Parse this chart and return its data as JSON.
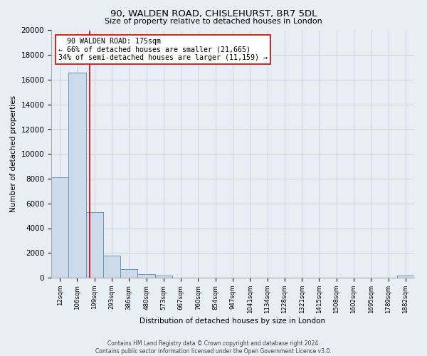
{
  "title": "90, WALDEN ROAD, CHISLEHURST, BR7 5DL",
  "subtitle": "Size of property relative to detached houses in London",
  "xlabel": "Distribution of detached houses by size in London",
  "ylabel": "Number of detached properties",
  "bar_labels": [
    "12sqm",
    "106sqm",
    "199sqm",
    "293sqm",
    "386sqm",
    "480sqm",
    "573sqm",
    "667sqm",
    "760sqm",
    "854sqm",
    "947sqm",
    "1041sqm",
    "1134sqm",
    "1228sqm",
    "1321sqm",
    "1415sqm",
    "1508sqm",
    "1602sqm",
    "1695sqm",
    "1789sqm",
    "1882sqm"
  ],
  "bar_heights": [
    8100,
    16600,
    5300,
    1800,
    700,
    300,
    150,
    0,
    0,
    0,
    0,
    0,
    0,
    0,
    0,
    0,
    0,
    0,
    0,
    0,
    150
  ],
  "bar_color": "#ccdaea",
  "bar_edge_color": "#6699bb",
  "vline_color": "#cc0000",
  "annotation_title": "90 WALDEN ROAD: 175sqm",
  "annotation_line1": "← 66% of detached houses are smaller (21,665)",
  "annotation_line2": "34% of semi-detached houses are larger (11,159) →",
  "annotation_box_color": "#ffffff",
  "annotation_box_edge": "#cc0000",
  "ylim": [
    0,
    20000
  ],
  "yticks": [
    0,
    2000,
    4000,
    6000,
    8000,
    10000,
    12000,
    14000,
    16000,
    18000,
    20000
  ],
  "footer_line1": "Contains HM Land Registry data © Crown copyright and database right 2024.",
  "footer_line2": "Contains public sector information licensed under the Open Government Licence v3.0.",
  "background_color": "#e8eef4",
  "plot_background": "#e8eef4",
  "grid_color": "#c5cdd6"
}
